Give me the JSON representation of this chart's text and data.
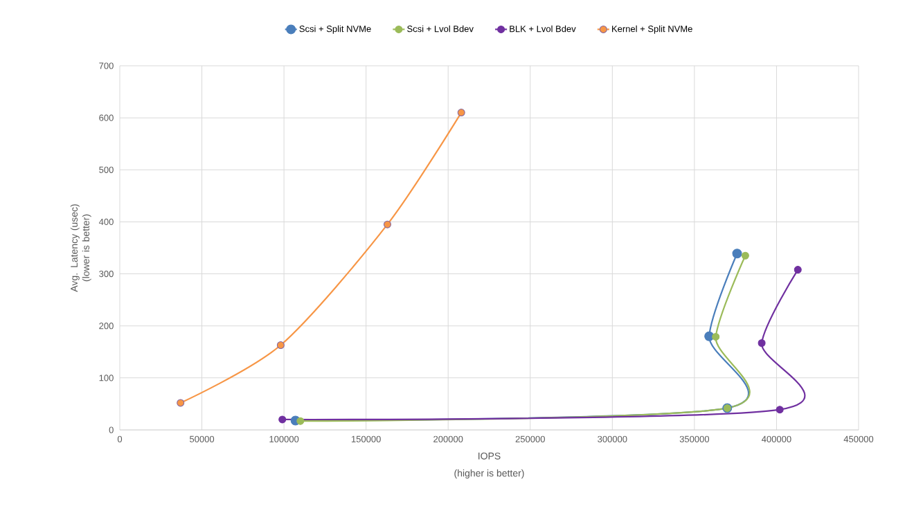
{
  "chart_data": {
    "type": "line",
    "xlabel": "IOPS",
    "ylabel": "Avg. Latency (usec) (lower is better)",
    "annotations": [
      "(higher is better)"
    ],
    "xlim": [
      0,
      450000
    ],
    "ylim": [
      0,
      700
    ],
    "xticks": [
      0,
      50000,
      100000,
      150000,
      200000,
      250000,
      300000,
      350000,
      400000,
      450000
    ],
    "yticks": [
      0,
      100,
      200,
      300,
      400,
      500,
      600,
      700
    ],
    "grid": true,
    "legend": "top",
    "marker": "circle",
    "line_style": "solid",
    "series": [
      {
        "name": "Scsi + Split NVMe",
        "color": "#4a7ebb",
        "x": [
          107000,
          370000,
          359000,
          376000
        ],
        "values": [
          18,
          42,
          180,
          339
        ]
      },
      {
        "name": "Scsi + Lvol Bdev",
        "color": "#9bbb59",
        "x": [
          110000,
          370000,
          363000,
          381000
        ],
        "values": [
          17,
          42,
          179,
          335
        ]
      },
      {
        "name": "BLK + Lvol Bdev",
        "color": "#7030a0",
        "x": [
          99000,
          402000,
          391000,
          413000
        ],
        "values": [
          20,
          39,
          167,
          308
        ]
      },
      {
        "name": "Kernel + Split NVMe",
        "color": "#f79646",
        "x": [
          37000,
          98000,
          163000,
          208000
        ],
        "values": [
          52,
          163,
          395,
          610
        ]
      }
    ]
  }
}
